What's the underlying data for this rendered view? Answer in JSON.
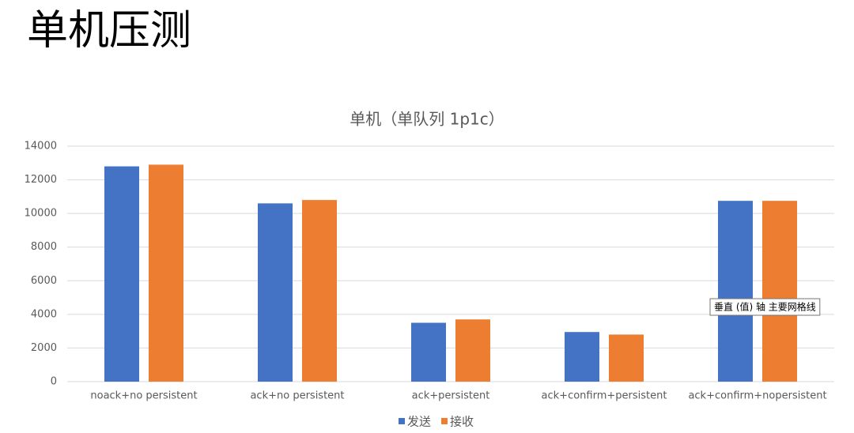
{
  "page_title": "单机压测",
  "chart_data": {
    "type": "bar",
    "title": "单机（单队列 1p1c）",
    "categories": [
      "noack+no persistent",
      "ack+no persistent",
      "ack+persistent",
      "ack+confirm+persistent",
      "ack+confirm+nopersistent"
    ],
    "series": [
      {
        "name": "发送",
        "color": "#4472c4",
        "values": [
          12800,
          10600,
          3500,
          2950,
          10750
        ]
      },
      {
        "name": "接收",
        "color": "#ed7d31",
        "values": [
          12900,
          10800,
          3700,
          2800,
          10750
        ]
      }
    ],
    "ylim": [
      0,
      14000
    ],
    "yticks": [
      0,
      2000,
      4000,
      6000,
      8000,
      10000,
      12000,
      14000
    ],
    "grid": true,
    "legend": "bottom",
    "annotations": [
      "垂直 (值) 轴 主要网格线"
    ]
  }
}
